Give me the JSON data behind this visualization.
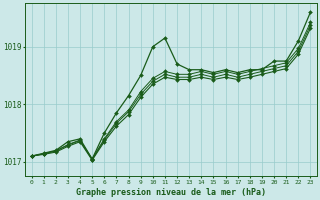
{
  "hours": [
    0,
    1,
    2,
    3,
    4,
    5,
    6,
    7,
    8,
    9,
    10,
    11,
    12,
    13,
    14,
    15,
    16,
    17,
    18,
    19,
    20,
    21,
    22,
    23
  ],
  "y_jagged": [
    1017.1,
    1017.15,
    1017.2,
    1017.35,
    1017.4,
    1017.05,
    1017.5,
    1017.85,
    1018.15,
    1018.5,
    1019.0,
    1019.15,
    1018.7,
    1018.6,
    1018.6,
    1018.55,
    1018.6,
    1018.55,
    1018.6,
    1018.6,
    1018.75,
    1018.75,
    1019.1,
    1019.6
  ],
  "y_smooth1": [
    1017.1,
    1017.13,
    1017.17,
    1017.27,
    1017.35,
    1017.03,
    1017.35,
    1017.62,
    1017.82,
    1018.12,
    1018.35,
    1018.47,
    1018.43,
    1018.43,
    1018.47,
    1018.43,
    1018.47,
    1018.43,
    1018.47,
    1018.52,
    1018.57,
    1018.62,
    1018.87,
    1019.32
  ],
  "y_smooth2": [
    1017.1,
    1017.14,
    1017.19,
    1017.29,
    1017.37,
    1017.04,
    1017.38,
    1017.67,
    1017.87,
    1018.17,
    1018.4,
    1018.52,
    1018.47,
    1018.47,
    1018.52,
    1018.47,
    1018.52,
    1018.47,
    1018.52,
    1018.57,
    1018.62,
    1018.67,
    1018.92,
    1019.37
  ],
  "y_smooth3": [
    1017.1,
    1017.14,
    1017.19,
    1017.3,
    1017.38,
    1017.05,
    1017.4,
    1017.7,
    1017.9,
    1018.22,
    1018.45,
    1018.57,
    1018.52,
    1018.52,
    1018.57,
    1018.52,
    1018.57,
    1018.52,
    1018.57,
    1018.62,
    1018.67,
    1018.72,
    1018.97,
    1019.42
  ],
  "ylim": [
    1016.75,
    1019.75
  ],
  "yticks": [
    1017,
    1018,
    1019
  ],
  "xlim": [
    -0.5,
    23.5
  ],
  "bg_color": "#cce8e8",
  "grid_color": "#99cccc",
  "line_color": "#1a5c1a",
  "xlabel": "Graphe pression niveau de la mer (hPa)"
}
